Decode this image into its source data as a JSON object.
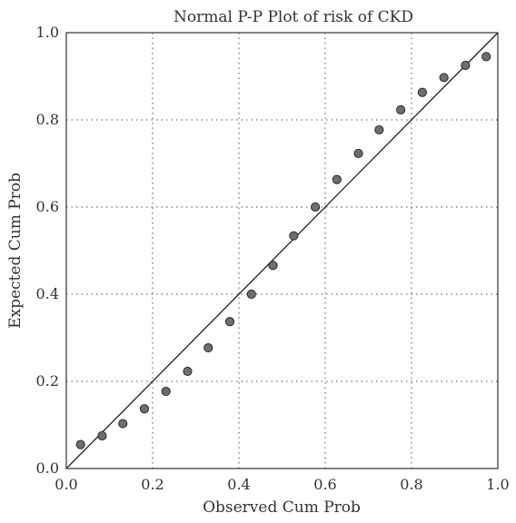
{
  "chart_data": {
    "type": "scatter",
    "title": "Normal P-P Plot of risk of CKD",
    "xlabel": "Observed Cum Prob",
    "ylabel": "Expected Cum Prob",
    "xlim": [
      0.0,
      1.0
    ],
    "ylim": [
      0.0,
      1.0
    ],
    "xticks": [
      "0.0",
      "0.2",
      "0.4",
      "0.6",
      "0.8",
      "1.0"
    ],
    "yticks": [
      "0.0",
      "0.2",
      "0.4",
      "0.6",
      "0.8",
      "1.0"
    ],
    "grid": true,
    "reference_line": [
      [
        0,
        0
      ],
      [
        1,
        1
      ]
    ],
    "points": [
      {
        "x": 0.033,
        "y": 0.055
      },
      {
        "x": 0.083,
        "y": 0.075
      },
      {
        "x": 0.131,
        "y": 0.103
      },
      {
        "x": 0.181,
        "y": 0.137
      },
      {
        "x": 0.231,
        "y": 0.177
      },
      {
        "x": 0.281,
        "y": 0.223
      },
      {
        "x": 0.329,
        "y": 0.277
      },
      {
        "x": 0.379,
        "y": 0.337
      },
      {
        "x": 0.429,
        "y": 0.4
      },
      {
        "x": 0.479,
        "y": 0.466
      },
      {
        "x": 0.527,
        "y": 0.534
      },
      {
        "x": 0.577,
        "y": 0.6
      },
      {
        "x": 0.627,
        "y": 0.663
      },
      {
        "x": 0.677,
        "y": 0.723
      },
      {
        "x": 0.725,
        "y": 0.777
      },
      {
        "x": 0.775,
        "y": 0.823
      },
      {
        "x": 0.825,
        "y": 0.863
      },
      {
        "x": 0.875,
        "y": 0.897
      },
      {
        "x": 0.925,
        "y": 0.925
      },
      {
        "x": 0.973,
        "y": 0.945
      }
    ],
    "colors": {
      "marker_fill": "#6e6e6e",
      "marker_stroke": "#2b2b2b",
      "line": "#222222",
      "grid": "#555555"
    }
  }
}
